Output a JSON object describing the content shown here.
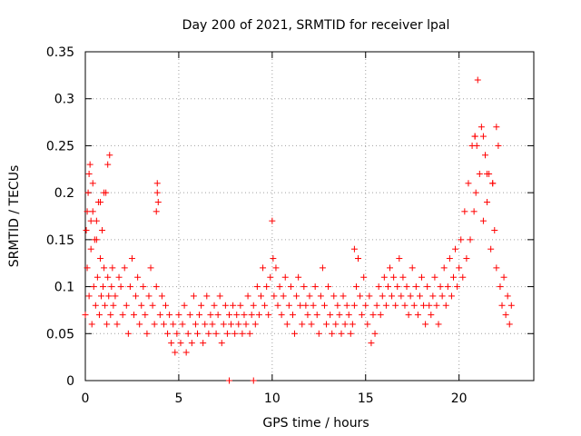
{
  "chart_data": {
    "type": "scatter",
    "title": "Day 200 of 2021, SRMTID for receiver lpal",
    "xlabel": "GPS time / hours",
    "ylabel": "SRMTID / TECUs",
    "xlim": [
      0,
      24
    ],
    "ylim": [
      0,
      0.35
    ],
    "xticks": [
      0,
      5,
      10,
      15,
      20
    ],
    "yticks": [
      0,
      0.05,
      0.1,
      0.15,
      0.2,
      0.25,
      0.3,
      0.35
    ],
    "xtick_labels": [
      "0",
      "5",
      "10",
      "15",
      "20"
    ],
    "ytick_labels": [
      "0",
      "0.05",
      "0.1",
      "0.15",
      "0.2",
      "0.25",
      "0.3",
      "0.35"
    ],
    "grid": true,
    "marker": "+",
    "color": "#ff0000",
    "series": [
      {
        "name": "SRMTID",
        "x": [
          0.0,
          0.05,
          0.1,
          0.15,
          0.2,
          0.25,
          0.3,
          0.35,
          0.4,
          0.45,
          0.5,
          0.55,
          0.6,
          0.65,
          0.7,
          0.75,
          0.8,
          0.85,
          0.9,
          0.95,
          1.0,
          1.05,
          1.1,
          1.15,
          1.2,
          1.25,
          1.3,
          1.35,
          1.4,
          1.45,
          1.5,
          1.6,
          1.7,
          1.8,
          1.9,
          2.0,
          2.1,
          2.2,
          2.3,
          2.4,
          2.5,
          2.6,
          2.7,
          2.8,
          2.9,
          3.0,
          3.1,
          3.2,
          3.3,
          3.4,
          3.5,
          3.6,
          3.7,
          3.8,
          3.85,
          3.9,
          4.0,
          4.1,
          4.2,
          4.3,
          4.4,
          4.5,
          4.6,
          4.7,
          4.8,
          4.9,
          5.0,
          5.1,
          5.2,
          5.3,
          5.4,
          5.5,
          5.6,
          5.7,
          5.8,
          5.9,
          6.0,
          6.1,
          6.2,
          6.3,
          6.4,
          6.5,
          6.6,
          6.7,
          6.8,
          6.9,
          7.0,
          7.1,
          7.2,
          7.3,
          7.4,
          7.5,
          7.6,
          7.7,
          7.8,
          7.9,
          8.0,
          8.1,
          8.2,
          8.3,
          8.4,
          8.5,
          8.6,
          8.7,
          8.8,
          8.9,
          9.0,
          9.1,
          9.2,
          9.3,
          9.4,
          9.5,
          9.6,
          9.7,
          9.8,
          9.9,
          10.0,
          10.05,
          10.1,
          10.2,
          10.3,
          10.4,
          10.5,
          10.6,
          10.7,
          10.8,
          10.9,
          11.0,
          11.1,
          11.2,
          11.3,
          11.4,
          11.5,
          11.6,
          11.7,
          11.8,
          11.9,
          12.0,
          12.1,
          12.2,
          12.3,
          12.4,
          12.5,
          12.6,
          12.7,
          12.8,
          12.9,
          13.0,
          13.1,
          13.2,
          13.3,
          13.4,
          13.5,
          13.6,
          13.7,
          13.8,
          13.9,
          14.0,
          14.1,
          14.2,
          14.3,
          14.4,
          14.5,
          14.6,
          14.7,
          14.8,
          14.9,
          15.0,
          15.1,
          15.2,
          15.3,
          15.4,
          15.5,
          15.6,
          15.7,
          15.8,
          15.9,
          16.0,
          16.1,
          16.2,
          16.3,
          16.4,
          16.5,
          16.6,
          16.7,
          16.8,
          16.9,
          17.0,
          17.1,
          17.2,
          17.3,
          17.4,
          17.5,
          17.6,
          17.7,
          17.8,
          17.9,
          18.0,
          18.1,
          18.2,
          18.3,
          18.4,
          18.5,
          18.6,
          18.7,
          18.8,
          18.9,
          19.0,
          19.1,
          19.2,
          19.3,
          19.4,
          19.5,
          19.6,
          19.7,
          19.8,
          19.9,
          20.0,
          20.1,
          20.2,
          20.3,
          20.4,
          20.5,
          20.6,
          20.7,
          20.8,
          20.85,
          20.9,
          21.0,
          21.1,
          21.2,
          21.3,
          21.4,
          21.5,
          21.6,
          21.7,
          21.8,
          21.9,
          22.0,
          22.1,
          22.2,
          22.3,
          22.4,
          22.5,
          22.6,
          22.7,
          22.8,
          7.7,
          9.0,
          0.1,
          0.3,
          0.6,
          1.2,
          0.2,
          0.4,
          0.8,
          1.0,
          3.8,
          3.85,
          14.4,
          14.6,
          20.85,
          20.95,
          21.3,
          21.5,
          21.8,
          22.0
        ],
        "y": [
          0.07,
          0.16,
          0.12,
          0.2,
          0.09,
          0.23,
          0.14,
          0.06,
          0.18,
          0.1,
          0.15,
          0.08,
          0.17,
          0.11,
          0.19,
          0.07,
          0.13,
          0.09,
          0.16,
          0.1,
          0.12,
          0.08,
          0.2,
          0.06,
          0.11,
          0.09,
          0.24,
          0.07,
          0.1,
          0.12,
          0.08,
          0.09,
          0.06,
          0.11,
          0.1,
          0.07,
          0.12,
          0.08,
          0.05,
          0.1,
          0.13,
          0.07,
          0.09,
          0.11,
          0.06,
          0.08,
          0.1,
          0.07,
          0.05,
          0.09,
          0.12,
          0.08,
          0.06,
          0.1,
          0.21,
          0.19,
          0.07,
          0.09,
          0.06,
          0.08,
          0.05,
          0.07,
          0.04,
          0.06,
          0.03,
          0.05,
          0.07,
          0.04,
          0.06,
          0.08,
          0.03,
          0.05,
          0.07,
          0.04,
          0.09,
          0.06,
          0.05,
          0.07,
          0.08,
          0.04,
          0.06,
          0.09,
          0.05,
          0.07,
          0.06,
          0.08,
          0.05,
          0.07,
          0.09,
          0.04,
          0.06,
          0.08,
          0.05,
          0.07,
          0.06,
          0.08,
          0.05,
          0.07,
          0.06,
          0.08,
          0.05,
          0.07,
          0.06,
          0.09,
          0.05,
          0.07,
          0.08,
          0.06,
          0.1,
          0.07,
          0.09,
          0.12,
          0.08,
          0.1,
          0.07,
          0.11,
          0.17,
          0.13,
          0.09,
          0.12,
          0.08,
          0.1,
          0.07,
          0.09,
          0.11,
          0.06,
          0.08,
          0.1,
          0.07,
          0.05,
          0.09,
          0.11,
          0.08,
          0.06,
          0.1,
          0.08,
          0.07,
          0.09,
          0.06,
          0.08,
          0.1,
          0.07,
          0.05,
          0.09,
          0.12,
          0.08,
          0.06,
          0.1,
          0.07,
          0.05,
          0.09,
          0.06,
          0.08,
          0.07,
          0.05,
          0.09,
          0.06,
          0.08,
          0.07,
          0.05,
          0.06,
          0.08,
          0.1,
          0.13,
          0.09,
          0.07,
          0.11,
          0.08,
          0.06,
          0.09,
          0.04,
          0.07,
          0.05,
          0.08,
          0.1,
          0.07,
          0.09,
          0.11,
          0.08,
          0.1,
          0.12,
          0.09,
          0.11,
          0.08,
          0.1,
          0.13,
          0.09,
          0.11,
          0.08,
          0.1,
          0.07,
          0.09,
          0.12,
          0.08,
          0.1,
          0.07,
          0.09,
          0.11,
          0.08,
          0.06,
          0.1,
          0.08,
          0.07,
          0.09,
          0.11,
          0.08,
          0.06,
          0.1,
          0.09,
          0.12,
          0.08,
          0.1,
          0.13,
          0.09,
          0.11,
          0.14,
          0.1,
          0.12,
          0.15,
          0.11,
          0.18,
          0.13,
          0.21,
          0.15,
          0.25,
          0.18,
          0.26,
          0.2,
          0.32,
          0.22,
          0.27,
          0.17,
          0.24,
          0.19,
          0.22,
          0.14,
          0.21,
          0.16,
          0.12,
          0.25,
          0.1,
          0.08,
          0.11,
          0.07,
          0.09,
          0.06,
          0.08,
          0,
          0,
          0.18,
          0.17,
          0.15,
          0.23,
          0.22,
          0.21,
          0.19,
          0.2,
          0.18,
          0.2,
          0.14,
          0.13,
          0.26,
          0.25,
          0.26,
          0.22,
          0.21,
          0.27
        ],
        "outliers_note": ""
      }
    ]
  }
}
